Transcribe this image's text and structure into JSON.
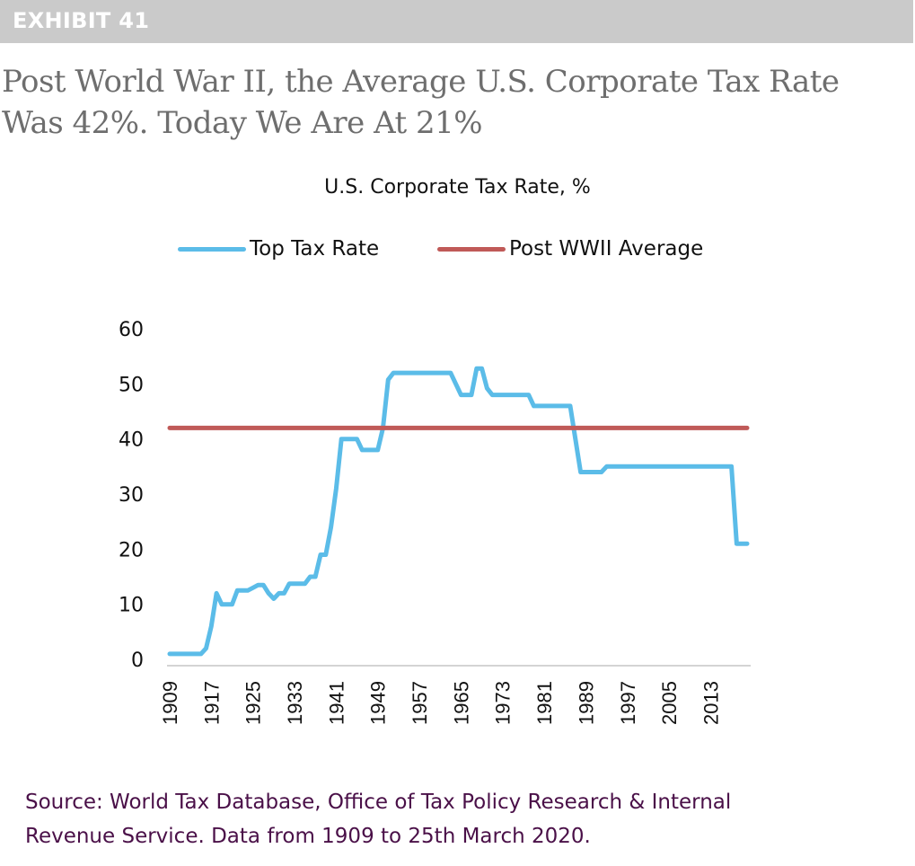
{
  "exhibit": {
    "label": "EXHIBIT 41"
  },
  "headline": {
    "line1": "Post World War II, the Average U.S. Corporate Tax Rate",
    "line2": "Was 42%. Today We Are At 21%"
  },
  "source": {
    "line1": "Source: World Tax Database, Office of Tax Policy Research & Internal",
    "line2": "Revenue Service. Data from 1909 to 25th March 2020."
  },
  "colors": {
    "top_rate": "#5bbce8",
    "average": "#c05a58",
    "axis": "#d4d4d4",
    "exhibit_bar": "#cacaca",
    "headline": "#6e6e6e",
    "source": "#4a1048"
  },
  "chart_data": {
    "type": "line",
    "title": "U.S. Corporate Tax Rate, %",
    "xlabel": "",
    "ylabel": "",
    "xlim": [
      1909,
      2020
    ],
    "ylim": [
      0,
      60
    ],
    "y_ticks": [
      "0",
      "10",
      "20",
      "30",
      "40",
      "50",
      "60"
    ],
    "x_ticks": [
      "1909",
      "1917",
      "1925",
      "1933",
      "1941",
      "1949",
      "1957",
      "1965",
      "1973",
      "1981",
      "1989",
      "1997",
      "2005",
      "2013"
    ],
    "grid": false,
    "legend_position": "top-center",
    "legend": [
      "Top Tax Rate",
      "Post WWII Average"
    ],
    "series": [
      {
        "name": "Top Tax Rate",
        "x": [
          1909,
          1910,
          1911,
          1912,
          1913,
          1914,
          1915,
          1916,
          1917,
          1918,
          1919,
          1920,
          1921,
          1922,
          1923,
          1924,
          1925,
          1926,
          1927,
          1928,
          1929,
          1930,
          1931,
          1932,
          1933,
          1934,
          1935,
          1936,
          1937,
          1938,
          1939,
          1940,
          1941,
          1942,
          1943,
          1944,
          1945,
          1946,
          1947,
          1948,
          1949,
          1950,
          1951,
          1952,
          1953,
          1954,
          1955,
          1956,
          1957,
          1958,
          1959,
          1960,
          1961,
          1962,
          1963,
          1964,
          1965,
          1966,
          1967,
          1968,
          1969,
          1970,
          1971,
          1972,
          1973,
          1974,
          1975,
          1976,
          1977,
          1978,
          1979,
          1980,
          1981,
          1982,
          1983,
          1984,
          1985,
          1986,
          1987,
          1988,
          1989,
          1990,
          1991,
          1992,
          1993,
          1994,
          1995,
          1996,
          1997,
          1998,
          1999,
          2000,
          2001,
          2002,
          2003,
          2004,
          2005,
          2006,
          2007,
          2008,
          2009,
          2010,
          2011,
          2012,
          2013,
          2014,
          2015,
          2016,
          2017,
          2018,
          2019,
          2020
        ],
        "values": [
          1,
          1,
          1,
          1,
          1,
          1,
          1,
          2,
          6,
          12,
          10,
          10,
          10,
          12.5,
          12.5,
          12.5,
          13,
          13.5,
          13.5,
          12,
          11,
          12,
          12,
          13.75,
          13.75,
          13.75,
          13.75,
          15,
          15,
          19,
          19,
          24,
          31,
          40,
          40,
          40,
          40,
          38,
          38,
          38,
          38,
          42,
          50.75,
          52,
          52,
          52,
          52,
          52,
          52,
          52,
          52,
          52,
          52,
          52,
          52,
          50,
          48,
          48,
          48,
          52.8,
          52.8,
          49.2,
          48,
          48,
          48,
          48,
          48,
          48,
          48,
          48,
          46,
          46,
          46,
          46,
          46,
          46,
          46,
          46,
          40,
          34,
          34,
          34,
          34,
          34,
          35,
          35,
          35,
          35,
          35,
          35,
          35,
          35,
          35,
          35,
          35,
          35,
          35,
          35,
          35,
          35,
          35,
          35,
          35,
          35,
          35,
          35,
          35,
          35,
          35,
          21,
          21,
          21
        ]
      },
      {
        "name": "Post WWII Average",
        "x": [
          1909,
          2020
        ],
        "values": [
          42,
          42
        ]
      }
    ]
  }
}
